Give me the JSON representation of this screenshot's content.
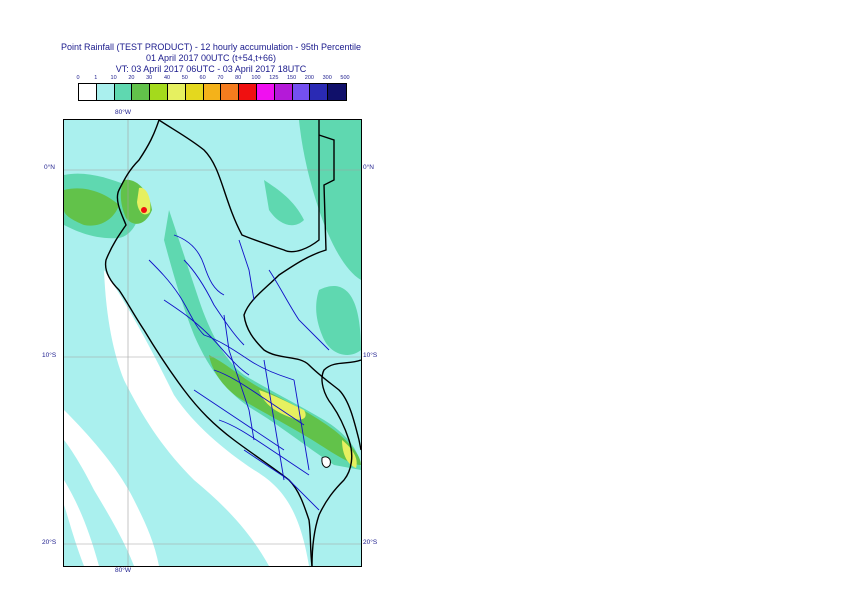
{
  "title": {
    "line1": "Point Rainfall (TEST PRODUCT) - 12 hourly accumulation - 95th Percentile",
    "line2": "01 April 2017 00UTC (t+54,t+66)",
    "line3": "VT: 03 April 2017 06UTC - 03 April 2017 18UTC"
  },
  "legend": {
    "labels": [
      "0",
      "1",
      "10",
      "20",
      "30",
      "40",
      "50",
      "60",
      "70",
      "80",
      "100",
      "125",
      "150",
      "200",
      "300",
      "500"
    ],
    "colors": [
      "#ffffff",
      "#aaf0ee",
      "#5fd8b0",
      "#62c24a",
      "#a4da1c",
      "#e6f060",
      "#e4d81e",
      "#f4b21a",
      "#f47c1e",
      "#f01010",
      "#f010f0",
      "#b41ad8",
      "#7450f0",
      "#2a2ab4",
      "#10106a"
    ]
  },
  "axes": {
    "lon_top": "80°W",
    "lon_bottom": "80°W",
    "lat_left": [
      "0°N",
      "10°S",
      "20°S"
    ],
    "lat_right": [
      "0°N",
      "10°S",
      "20°S"
    ]
  },
  "map": {
    "region": "Peru",
    "ocean_color": "#aaf0ee",
    "moderate_color": "#5fd8b0",
    "heavy_color": "#62c24a",
    "intense_color": "#e6f060"
  }
}
